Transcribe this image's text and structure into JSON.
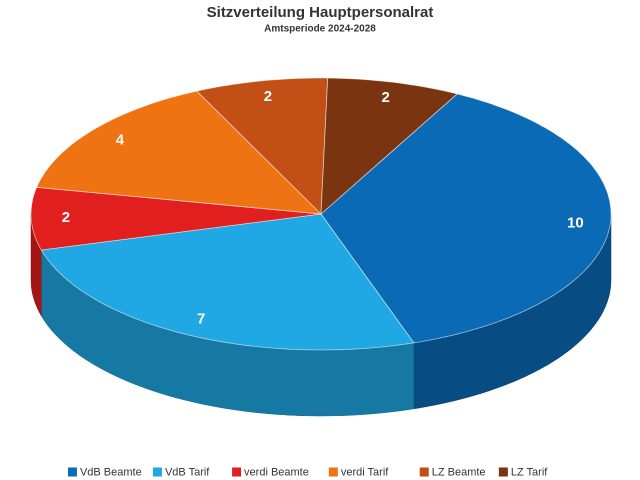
{
  "chart_data": {
    "type": "pie",
    "title": "Sitzverteilung Hauptpersonalrat",
    "subtitle": "Amtsperiode 2024-2028",
    "categories": [
      "VdB Beamte",
      "VdB Tarif",
      "verdi Beamte",
      "verdi Tarif",
      "LZ Beamte",
      "LZ Tarif"
    ],
    "values": [
      10,
      7,
      2,
      4,
      2,
      2
    ],
    "colors": [
      "#0a6ab6",
      "#1fa8e4",
      "#e11f1f",
      "#ef7213",
      "#c14f16",
      "#7b3410"
    ],
    "legend": "bottom"
  }
}
